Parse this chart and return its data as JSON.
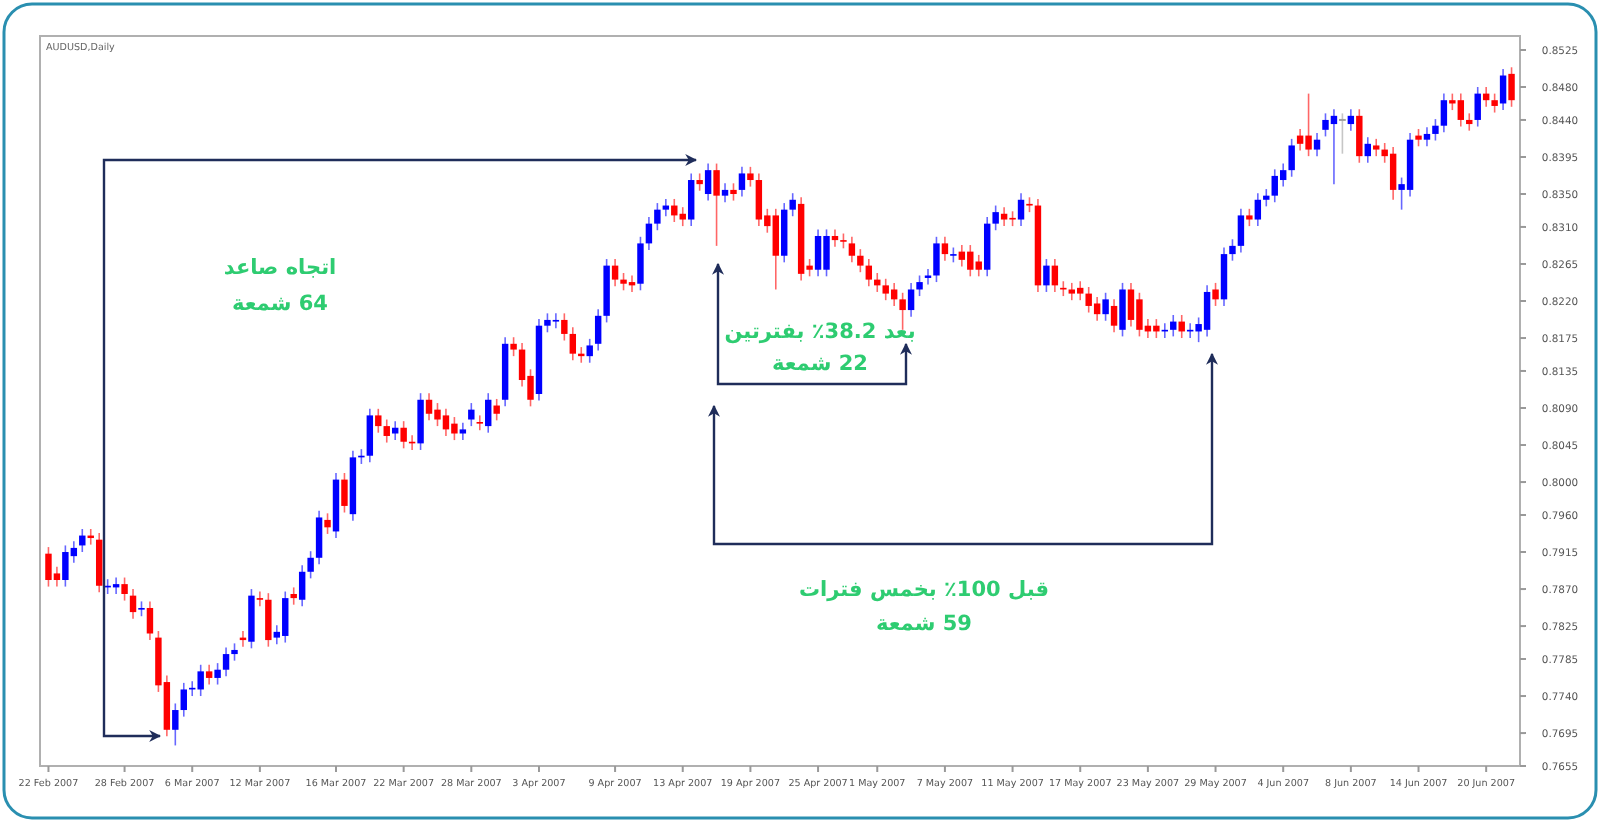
{
  "chart_data": {
    "type": "candlestick",
    "title": "AUDUSD,Daily",
    "categories": [
      "22 Feb 2007",
      null,
      null,
      null,
      null,
      null,
      null,
      null,
      null,
      "28 Feb 2007",
      null,
      null,
      null,
      null,
      null,
      null,
      null,
      "6 Mar 2007",
      null,
      null,
      null,
      null,
      null,
      null,
      null,
      "12 Mar 2007",
      null,
      null,
      null,
      null,
      null,
      null,
      null,
      null,
      "16 Mar 2007",
      null,
      null,
      null,
      null,
      null,
      null,
      null,
      "22 Mar 2007",
      null,
      null,
      null,
      null,
      null,
      null,
      null,
      "28 Mar 2007",
      null,
      null,
      null,
      null,
      null,
      null,
      null,
      "3 Apr 2007",
      null,
      null,
      null,
      null,
      null,
      null,
      null,
      null,
      "9 Apr 2007",
      null,
      null,
      null,
      null,
      null,
      null,
      null,
      "13 Apr 2007",
      null,
      null,
      null,
      null,
      null,
      null,
      null,
      "19 Apr 2007",
      null,
      null,
      null,
      null,
      null,
      null,
      null,
      "25 Apr 2007",
      null,
      null,
      null,
      null,
      null,
      null,
      "1 May 2007",
      null,
      null,
      null,
      null,
      null,
      null,
      null,
      "7 May 2007",
      null,
      null,
      null,
      null,
      null,
      null,
      null,
      "11 May 2007",
      null,
      null,
      null,
      null,
      null,
      null,
      null,
      "17 May 2007",
      null,
      null,
      null,
      null,
      null,
      null,
      null,
      "23 May 2007",
      null,
      null,
      null,
      null,
      null,
      null,
      null,
      "29 May 2007",
      null,
      null,
      null,
      null,
      null,
      null,
      null,
      "4 Jun 2007",
      null,
      null,
      null,
      null,
      null,
      null,
      null,
      "8 Jun 2007",
      null,
      null,
      null,
      null,
      null,
      null,
      null,
      "14 Jun 2007",
      null,
      null,
      null,
      null,
      null,
      null,
      null,
      "20 Jun 2007",
      null,
      null,
      null
    ],
    "ohlc": [
      [
        0.7913,
        0.7921,
        0.7873,
        0.7881
      ],
      [
        0.7889,
        0.7897,
        0.7873,
        0.7881
      ],
      [
        0.7881,
        0.7923,
        0.7873,
        0.7915
      ],
      [
        0.791,
        0.7928,
        0.7902,
        0.792
      ],
      [
        0.7923,
        0.7943,
        0.7915,
        0.7935
      ],
      [
        0.7935,
        0.7943,
        0.7924,
        0.7932
      ],
      [
        0.793,
        0.7938,
        0.7866,
        0.7874
      ],
      [
        0.7872,
        0.7882,
        0.7864,
        0.7874
      ],
      [
        0.7872,
        0.7884,
        0.7864,
        0.7876
      ],
      [
        0.7876,
        0.7884,
        0.7856,
        0.7864
      ],
      [
        0.7862,
        0.787,
        0.7834,
        0.7842
      ],
      [
        0.7845,
        0.7855,
        0.7837,
        0.7847
      ],
      [
        0.7847,
        0.7855,
        0.7808,
        0.7816
      ],
      [
        0.7811,
        0.7819,
        0.7745,
        0.7753
      ],
      [
        0.7757,
        0.7765,
        0.7691,
        0.7699
      ],
      [
        0.7699,
        0.7731,
        0.768,
        0.7723
      ],
      [
        0.7723,
        0.7756,
        0.7715,
        0.7748
      ],
      [
        0.7748,
        0.7758,
        0.774,
        0.775
      ],
      [
        0.7748,
        0.7778,
        0.774,
        0.777
      ],
      [
        0.777,
        0.7778,
        0.7754,
        0.7762
      ],
      [
        0.7762,
        0.778,
        0.7754,
        0.7772
      ],
      [
        0.7772,
        0.7799,
        0.7764,
        0.7791
      ],
      [
        0.7791,
        0.7804,
        0.7783,
        0.7796
      ],
      [
        0.7811,
        0.7819,
        0.78,
        0.7808
      ],
      [
        0.7806,
        0.787,
        0.7798,
        0.7862
      ],
      [
        0.7859,
        0.7867,
        0.7849,
        0.7857
      ],
      [
        0.7857,
        0.7865,
        0.78,
        0.7808
      ],
      [
        0.7811,
        0.7826,
        0.7803,
        0.7818
      ],
      [
        0.7813,
        0.7867,
        0.7805,
        0.7859
      ],
      [
        0.7864,
        0.7872,
        0.7851,
        0.7859
      ],
      [
        0.7857,
        0.7899,
        0.7849,
        0.7891
      ],
      [
        0.7891,
        0.7916,
        0.7883,
        0.7908
      ],
      [
        0.7908,
        0.7965,
        0.79,
        0.7957
      ],
      [
        0.7954,
        0.7962,
        0.7937,
        0.7945
      ],
      [
        0.794,
        0.8011,
        0.7932,
        0.8003
      ],
      [
        0.8003,
        0.8011,
        0.7963,
        0.7971
      ],
      [
        0.7961,
        0.8038,
        0.7953,
        0.803
      ],
      [
        0.803,
        0.804,
        0.8022,
        0.8032
      ],
      [
        0.8032,
        0.8089,
        0.8024,
        0.8081
      ],
      [
        0.8081,
        0.8089,
        0.806,
        0.8068
      ],
      [
        0.8068,
        0.8076,
        0.8048,
        0.8056
      ],
      [
        0.8059,
        0.8074,
        0.8051,
        0.8066
      ],
      [
        0.8066,
        0.8074,
        0.8041,
        0.8049
      ],
      [
        0.8049,
        0.8057,
        0.8039,
        0.8047
      ],
      [
        0.8047,
        0.8108,
        0.8039,
        0.81
      ],
      [
        0.81,
        0.8108,
        0.8075,
        0.8083
      ],
      [
        0.8088,
        0.8096,
        0.8068,
        0.8076
      ],
      [
        0.8081,
        0.8089,
        0.8056,
        0.8064
      ],
      [
        0.8071,
        0.8079,
        0.8051,
        0.8059
      ],
      [
        0.8059,
        0.8072,
        0.8051,
        0.8064
      ],
      [
        0.8076,
        0.8096,
        0.8068,
        0.8088
      ],
      [
        0.8073,
        0.8081,
        0.8063,
        0.8071
      ],
      [
        0.8068,
        0.8108,
        0.806,
        0.81
      ],
      [
        0.8093,
        0.8101,
        0.8075,
        0.8083
      ],
      [
        0.81,
        0.8176,
        0.8092,
        0.8168
      ],
      [
        0.8168,
        0.8176,
        0.8153,
        0.8161
      ],
      [
        0.8161,
        0.8169,
        0.8116,
        0.8124
      ],
      [
        0.8129,
        0.8137,
        0.8092,
        0.81
      ],
      [
        0.8107,
        0.8198,
        0.8099,
        0.819
      ],
      [
        0.819,
        0.8205,
        0.8182,
        0.8197
      ],
      [
        0.8195,
        0.8205,
        0.8187,
        0.8197
      ],
      [
        0.8197,
        0.8205,
        0.8172,
        0.818
      ],
      [
        0.818,
        0.8188,
        0.8148,
        0.8156
      ],
      [
        0.8156,
        0.8164,
        0.8145,
        0.8153
      ],
      [
        0.8153,
        0.8174,
        0.8145,
        0.8166
      ],
      [
        0.8168,
        0.821,
        0.816,
        0.8202
      ],
      [
        0.8202,
        0.8271,
        0.8194,
        0.8263
      ],
      [
        0.8263,
        0.8271,
        0.8238,
        0.8246
      ],
      [
        0.8246,
        0.8254,
        0.8233,
        0.8241
      ],
      [
        0.8243,
        0.8251,
        0.8231,
        0.8239
      ],
      [
        0.8241,
        0.8298,
        0.8233,
        0.829
      ],
      [
        0.829,
        0.8322,
        0.8282,
        0.8314
      ],
      [
        0.8314,
        0.8339,
        0.8306,
        0.8331
      ],
      [
        0.8331,
        0.8344,
        0.8323,
        0.8336
      ],
      [
        0.8336,
        0.8344,
        0.8316,
        0.8324
      ],
      [
        0.8326,
        0.8334,
        0.8311,
        0.8319
      ],
      [
        0.8319,
        0.8375,
        0.8311,
        0.8367
      ],
      [
        0.8367,
        0.8375,
        0.8354,
        0.8362
      ],
      [
        0.835,
        0.8387,
        0.8342,
        0.8379
      ],
      [
        0.8379,
        0.8387,
        0.8287,
        0.8348
      ],
      [
        0.8348,
        0.8363,
        0.834,
        0.8355
      ],
      [
        0.8355,
        0.8363,
        0.8342,
        0.835
      ],
      [
        0.8355,
        0.8383,
        0.8347,
        0.8375
      ],
      [
        0.8375,
        0.8383,
        0.8359,
        0.8367
      ],
      [
        0.8367,
        0.8375,
        0.8311,
        0.8319
      ],
      [
        0.8324,
        0.8332,
        0.8303,
        0.8311
      ],
      [
        0.8324,
        0.8332,
        0.8234,
        0.8275
      ],
      [
        0.8275,
        0.8339,
        0.8267,
        0.8331
      ],
      [
        0.8331,
        0.8351,
        0.8323,
        0.8343
      ],
      [
        0.8338,
        0.8346,
        0.8245,
        0.8253
      ],
      [
        0.8263,
        0.8271,
        0.825,
        0.8258
      ],
      [
        0.8258,
        0.8307,
        0.825,
        0.8299
      ],
      [
        0.8258,
        0.8307,
        0.825,
        0.8299
      ],
      [
        0.8299,
        0.8307,
        0.8286,
        0.8294
      ],
      [
        0.8294,
        0.8302,
        0.8284,
        0.8292
      ],
      [
        0.829,
        0.8298,
        0.8267,
        0.8275
      ],
      [
        0.8275,
        0.8283,
        0.8255,
        0.8263
      ],
      [
        0.8263,
        0.8271,
        0.8238,
        0.8246
      ],
      [
        0.8246,
        0.8254,
        0.8231,
        0.8239
      ],
      [
        0.8239,
        0.8247,
        0.8221,
        0.8229
      ],
      [
        0.8234,
        0.8242,
        0.8214,
        0.8222
      ],
      [
        0.8222,
        0.823,
        0.8185,
        0.8209
      ],
      [
        0.8209,
        0.8242,
        0.8201,
        0.8234
      ],
      [
        0.8234,
        0.8251,
        0.8226,
        0.8243
      ],
      [
        0.8248,
        0.8259,
        0.824,
        0.8251
      ],
      [
        0.8251,
        0.8298,
        0.8243,
        0.829
      ],
      [
        0.829,
        0.8298,
        0.8269,
        0.8277
      ],
      [
        0.8275,
        0.8285,
        0.8267,
        0.8277
      ],
      [
        0.828,
        0.8288,
        0.8262,
        0.827
      ],
      [
        0.828,
        0.8288,
        0.825,
        0.8258
      ],
      [
        0.8268,
        0.8276,
        0.825,
        0.8258
      ],
      [
        0.8258,
        0.8322,
        0.825,
        0.8314
      ],
      [
        0.8314,
        0.8336,
        0.8306,
        0.8328
      ],
      [
        0.8326,
        0.8334,
        0.8311,
        0.8319
      ],
      [
        0.8321,
        0.8329,
        0.8311,
        0.8319
      ],
      [
        0.8319,
        0.8351,
        0.8311,
        0.8343
      ],
      [
        0.8338,
        0.8346,
        0.8328,
        0.8336
      ],
      [
        0.8336,
        0.8344,
        0.8231,
        0.8239
      ],
      [
        0.8239,
        0.8271,
        0.8231,
        0.8263
      ],
      [
        0.8263,
        0.8271,
        0.8231,
        0.8239
      ],
      [
        0.8236,
        0.8244,
        0.8226,
        0.8234
      ],
      [
        0.8234,
        0.8242,
        0.8221,
        0.8229
      ],
      [
        0.8236,
        0.8244,
        0.8221,
        0.8229
      ],
      [
        0.8229,
        0.8237,
        0.8206,
        0.8214
      ],
      [
        0.8217,
        0.8225,
        0.8196,
        0.8204
      ],
      [
        0.8204,
        0.823,
        0.8196,
        0.8222
      ],
      [
        0.8214,
        0.8222,
        0.8182,
        0.819
      ],
      [
        0.8185,
        0.8242,
        0.8177,
        0.8234
      ],
      [
        0.8234,
        0.8242,
        0.8189,
        0.8197
      ],
      [
        0.8222,
        0.823,
        0.8177,
        0.8185
      ],
      [
        0.819,
        0.8198,
        0.8175,
        0.8183
      ],
      [
        0.819,
        0.8198,
        0.8175,
        0.8183
      ],
      [
        0.8183,
        0.8193,
        0.8175,
        0.8185
      ],
      [
        0.8185,
        0.8203,
        0.8177,
        0.8195
      ],
      [
        0.8195,
        0.8203,
        0.8175,
        0.8183
      ],
      [
        0.8183,
        0.8193,
        0.8175,
        0.8185
      ],
      [
        0.8183,
        0.82,
        0.817,
        0.8192
      ],
      [
        0.8185,
        0.8239,
        0.8177,
        0.8231
      ],
      [
        0.8234,
        0.8242,
        0.8214,
        0.8222
      ],
      [
        0.8222,
        0.8285,
        0.8214,
        0.8277
      ],
      [
        0.8277,
        0.8295,
        0.8269,
        0.8287
      ],
      [
        0.8287,
        0.8332,
        0.8279,
        0.8324
      ],
      [
        0.8324,
        0.8332,
        0.8311,
        0.8319
      ],
      [
        0.8319,
        0.8351,
        0.8311,
        0.8343
      ],
      [
        0.8343,
        0.8356,
        0.8335,
        0.8348
      ],
      [
        0.8348,
        0.838,
        0.834,
        0.8372
      ],
      [
        0.8367,
        0.8387,
        0.8359,
        0.8379
      ],
      [
        0.8379,
        0.8417,
        0.8371,
        0.8409
      ],
      [
        0.8421,
        0.8429,
        0.8403,
        0.8411
      ],
      [
        0.8421,
        0.8472,
        0.8396,
        0.8404
      ],
      [
        0.8404,
        0.8424,
        0.8396,
        0.8416
      ],
      [
        0.8428,
        0.8448,
        0.842,
        0.844
      ],
      [
        0.8435,
        0.8453,
        0.8362,
        0.8445
      ],
      [
        0.844,
        0.8448,
        0.8399,
        0.844
      ],
      [
        0.8435,
        0.8453,
        0.8427,
        0.8445
      ],
      [
        0.8445,
        0.8453,
        0.8388,
        0.8396
      ],
      [
        0.8396,
        0.8419,
        0.8388,
        0.8411
      ],
      [
        0.8409,
        0.8417,
        0.8396,
        0.8404
      ],
      [
        0.8404,
        0.8412,
        0.8388,
        0.8396
      ],
      [
        0.8399,
        0.8407,
        0.8343,
        0.8355
      ],
      [
        0.8355,
        0.837,
        0.8331,
        0.8362
      ],
      [
        0.8355,
        0.8424,
        0.8347,
        0.8416
      ],
      [
        0.8421,
        0.8429,
        0.8408,
        0.8416
      ],
      [
        0.8416,
        0.8431,
        0.8408,
        0.8423
      ],
      [
        0.8423,
        0.8441,
        0.8415,
        0.8433
      ],
      [
        0.8433,
        0.8472,
        0.8425,
        0.8464
      ],
      [
        0.8464,
        0.8472,
        0.8452,
        0.846
      ],
      [
        0.8464,
        0.8472,
        0.8432,
        0.844
      ],
      [
        0.844,
        0.8448,
        0.8427,
        0.8435
      ],
      [
        0.844,
        0.848,
        0.8432,
        0.8472
      ],
      [
        0.8472,
        0.848,
        0.8456,
        0.8464
      ],
      [
        0.8464,
        0.8472,
        0.8449,
        0.8457
      ],
      [
        0.846,
        0.8502,
        0.8452,
        0.8494
      ],
      [
        0.8496,
        0.8504,
        0.8456,
        0.8464
      ]
    ],
    "ylim": [
      0.7655,
      0.8542
    ],
    "yticks": [
      {
        "value": 0.7655,
        "label": "0.7655"
      },
      {
        "value": 0.7695,
        "label": "0.7695"
      },
      {
        "value": 0.774,
        "label": "0.7740"
      },
      {
        "value": 0.7785,
        "label": "0.7785"
      },
      {
        "value": 0.7825,
        "label": "0.7825"
      },
      {
        "value": 0.787,
        "label": "0.7870"
      },
      {
        "value": 0.7915,
        "label": "0.7915"
      },
      {
        "value": 0.796,
        "label": "0.7960"
      },
      {
        "value": 0.8,
        "label": "0.8000"
      },
      {
        "value": 0.8045,
        "label": "0.8045"
      },
      {
        "value": 0.809,
        "label": "0.8090"
      },
      {
        "value": 0.8135,
        "label": "0.8135"
      },
      {
        "value": 0.8175,
        "label": "0.8175"
      },
      {
        "value": 0.822,
        "label": "0.8220"
      },
      {
        "value": 0.8265,
        "label": "0.8265"
      },
      {
        "value": 0.831,
        "label": "0.8310"
      },
      {
        "value": 0.835,
        "label": "0.8350"
      },
      {
        "value": 0.8395,
        "label": "0.8395"
      },
      {
        "value": 0.844,
        "label": "0.8440"
      },
      {
        "value": 0.848,
        "label": "0.8480"
      },
      {
        "value": 0.8525,
        "label": "0.8525"
      }
    ],
    "annotations": [
      "اتجاه صاعد",
      "64 شمعة",
      "بعد 38.2٪ بفترتين",
      "22 شمعة",
      "قبل 100٪ بخمس فترات",
      "59 شمعة"
    ]
  }
}
